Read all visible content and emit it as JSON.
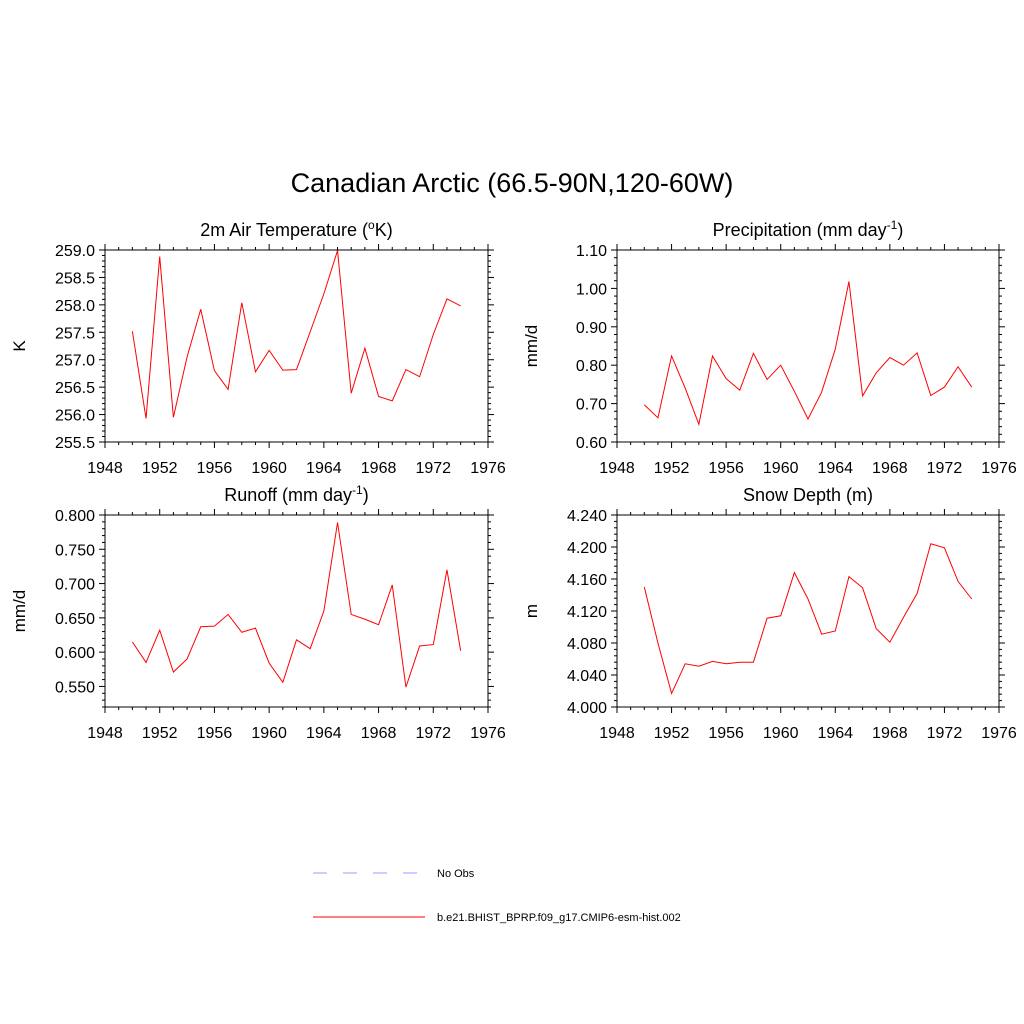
{
  "title": "Canadian Arctic (66.5-90N,120-60W)",
  "legend": [
    {
      "label": "No Obs",
      "color": "#9999ff",
      "style": "dashed"
    },
    {
      "label": "b.e21.BHIST_BPRP.f09_g17.CMIP6-esm-hist.002",
      "color": "#ff0000",
      "style": "solid"
    }
  ],
  "chart_data": [
    {
      "type": "line",
      "title_main": "2m Air Temperature (",
      "title_sup": "o",
      "title_rest": "K)",
      "ylabel": "K",
      "xlim": [
        1948,
        1976
      ],
      "xticks": [
        "1948",
        "1952",
        "1956",
        "1960",
        "1964",
        "1968",
        "1972",
        "1976"
      ],
      "ylim": [
        255.5,
        259.0
      ],
      "yticks": [
        "255.5",
        "256.0",
        "256.5",
        "257.0",
        "257.5",
        "258.0",
        "258.5",
        "259.0"
      ],
      "x": [
        1950,
        1951,
        1952,
        1953,
        1954,
        1955,
        1956,
        1957,
        1958,
        1959,
        1960,
        1961,
        1962,
        1963,
        1964,
        1965,
        1966,
        1967,
        1968,
        1969,
        1970,
        1971,
        1972,
        1973,
        1974
      ],
      "series": [
        {
          "name": "b.e21.BHIST_BPRP.f09_g17.CMIP6-esm-hist.002",
          "color": "#ff0000",
          "values": [
            257.52,
            255.93,
            258.88,
            255.95,
            257.05,
            257.92,
            256.8,
            256.46,
            258.04,
            256.78,
            257.17,
            256.81,
            256.82,
            257.51,
            258.2,
            258.99,
            256.39,
            257.21,
            256.33,
            256.25,
            256.82,
            256.69,
            257.46,
            258.11,
            257.98
          ]
        }
      ]
    },
    {
      "type": "line",
      "title_main": "Precipitation (mm day",
      "title_sup": "-1",
      "title_rest": ")",
      "ylabel": "mm/d",
      "xlim": [
        1948,
        1976
      ],
      "xticks": [
        "1948",
        "1952",
        "1956",
        "1960",
        "1964",
        "1968",
        "1972",
        "1976"
      ],
      "ylim": [
        0.6,
        1.1
      ],
      "yticks": [
        "0.60",
        "0.70",
        "0.80",
        "0.90",
        "1.00",
        "1.10"
      ],
      "x": [
        1950,
        1951,
        1952,
        1953,
        1954,
        1955,
        1956,
        1957,
        1958,
        1959,
        1960,
        1961,
        1962,
        1963,
        1964,
        1965,
        1966,
        1967,
        1968,
        1969,
        1970,
        1971,
        1972,
        1973,
        1974
      ],
      "series": [
        {
          "name": "b.e21.BHIST_BPRP.f09_g17.CMIP6-esm-hist.002",
          "color": "#ff0000",
          "values": [
            0.697,
            0.663,
            0.824,
            0.74,
            0.646,
            0.824,
            0.765,
            0.735,
            0.831,
            0.763,
            0.8,
            0.732,
            0.66,
            0.73,
            0.842,
            1.018,
            0.72,
            0.78,
            0.82,
            0.8,
            0.832,
            0.721,
            0.743,
            0.796,
            0.743
          ]
        }
      ]
    },
    {
      "type": "line",
      "title_main": "Runoff (mm day",
      "title_sup": "-1",
      "title_rest": ")",
      "ylabel": "mm/d",
      "xlim": [
        1948,
        1976
      ],
      "xticks": [
        "1948",
        "1952",
        "1956",
        "1960",
        "1964",
        "1968",
        "1972",
        "1976"
      ],
      "ylim": [
        0.52,
        0.8
      ],
      "yticks": [
        "0.550",
        "0.600",
        "0.650",
        "0.700",
        "0.750",
        "0.800"
      ],
      "ytick_values": [
        0.55,
        0.6,
        0.65,
        0.7,
        0.75,
        0.8
      ],
      "x": [
        1950,
        1951,
        1952,
        1953,
        1954,
        1955,
        1956,
        1957,
        1958,
        1959,
        1960,
        1961,
        1962,
        1963,
        1964,
        1965,
        1966,
        1967,
        1968,
        1969,
        1970,
        1971,
        1972,
        1973,
        1974
      ],
      "series": [
        {
          "name": "b.e21.BHIST_BPRP.f09_g17.CMIP6-esm-hist.002",
          "color": "#ff0000",
          "values": [
            0.615,
            0.585,
            0.632,
            0.571,
            0.59,
            0.637,
            0.638,
            0.655,
            0.629,
            0.635,
            0.584,
            0.556,
            0.618,
            0.605,
            0.66,
            0.789,
            0.655,
            0.648,
            0.64,
            0.698,
            0.549,
            0.609,
            0.611,
            0.72,
            0.602
          ]
        }
      ]
    },
    {
      "type": "line",
      "title_main": "Snow Depth (m)",
      "title_sup": "",
      "title_rest": "",
      "ylabel": "m",
      "xlim": [
        1948,
        1976
      ],
      "xticks": [
        "1948",
        "1952",
        "1956",
        "1960",
        "1964",
        "1968",
        "1972",
        "1976"
      ],
      "ylim": [
        4.0,
        4.24
      ],
      "yticks": [
        "4.000",
        "4.040",
        "4.080",
        "4.120",
        "4.160",
        "4.200",
        "4.240"
      ],
      "x": [
        1950,
        1951,
        1952,
        1953,
        1954,
        1955,
        1956,
        1957,
        1958,
        1959,
        1960,
        1961,
        1962,
        1963,
        1964,
        1965,
        1966,
        1967,
        1968,
        1969,
        1970,
        1971,
        1972,
        1973,
        1974
      ],
      "series": [
        {
          "name": "b.e21.BHIST_BPRP.f09_g17.CMIP6-esm-hist.002",
          "color": "#ff0000",
          "values": [
            4.15,
            4.08,
            4.017,
            4.054,
            4.051,
            4.057,
            4.054,
            4.056,
            4.056,
            4.111,
            4.114,
            4.168,
            4.135,
            4.091,
            4.095,
            4.163,
            4.149,
            4.098,
            4.081,
            4.112,
            4.142,
            4.204,
            4.199,
            4.157,
            4.135
          ]
        }
      ]
    }
  ]
}
